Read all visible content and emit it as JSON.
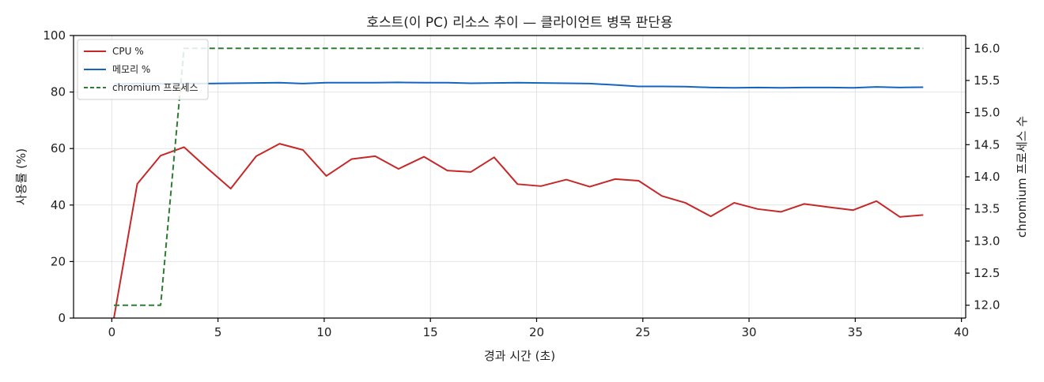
{
  "chart_data": {
    "type": "line",
    "title": "호스트(이 PC) 리소스 추이 — 클라이언트 병목 판단용",
    "xlabel": "경과 시간 (초)",
    "ylabel": "사용률 (%)",
    "y2label": "chromium 프로세스 수",
    "xlim": [
      -1.8,
      40.2
    ],
    "ylim": [
      0,
      100
    ],
    "y2lim": [
      11.8,
      16.2
    ],
    "xticks": [
      0,
      5,
      10,
      15,
      20,
      25,
      30,
      35,
      40
    ],
    "yticks": [
      0,
      20,
      40,
      60,
      80,
      100
    ],
    "y2ticks": [
      12.0,
      12.5,
      13.0,
      13.5,
      14.0,
      14.5,
      15.0,
      15.5,
      16.0
    ],
    "grid": true,
    "legend_position": "upper-left",
    "series": [
      {
        "name": "CPU %",
        "axis": "left",
        "color": "#c62828",
        "dash": "solid",
        "x": [
          0.1,
          1.2,
          2.3,
          3.4,
          4.5,
          5.6,
          6.8,
          7.9,
          9.0,
          10.1,
          11.3,
          12.4,
          13.5,
          14.7,
          15.8,
          16.9,
          18.0,
          19.1,
          20.2,
          21.4,
          22.5,
          23.7,
          24.8,
          25.9,
          27.0,
          28.2,
          29.3,
          30.4,
          31.5,
          32.6,
          33.8,
          34.9,
          36.0,
          37.1,
          38.2
        ],
        "y": [
          0,
          47.5,
          57.5,
          60.5,
          53,
          45.8,
          57.3,
          61.7,
          59.5,
          50.3,
          56.3,
          57.3,
          52.8,
          57.1,
          52.2,
          51.7,
          56.9,
          47.4,
          46.7,
          49.0,
          46.5,
          49.2,
          48.6,
          43.2,
          40.8,
          36.0,
          40.8,
          38.6,
          37.6,
          40.4,
          39.2,
          38.2,
          41.4,
          35.8,
          36.5
        ]
      },
      {
        "name": "메모리 %",
        "axis": "left",
        "color": "#1565c0",
        "dash": "solid",
        "x": [
          0.1,
          1.2,
          2.3,
          3.4,
          4.5,
          5.6,
          6.8,
          7.9,
          9.0,
          10.1,
          11.3,
          12.4,
          13.5,
          14.7,
          15.8,
          16.9,
          18.0,
          19.1,
          20.2,
          21.4,
          22.5,
          23.7,
          24.8,
          25.9,
          27.0,
          28.2,
          29.3,
          30.4,
          31.5,
          32.6,
          33.8,
          34.9,
          36.0,
          37.1,
          38.2
        ],
        "y": [
          82.8,
          83.0,
          82.9,
          83.0,
          83.0,
          83.1,
          83.2,
          83.3,
          83.0,
          83.3,
          83.3,
          83.3,
          83.4,
          83.3,
          83.3,
          83.1,
          83.2,
          83.3,
          83.2,
          83.1,
          83.0,
          82.5,
          82.0,
          82.0,
          81.9,
          81.6,
          81.5,
          81.6,
          81.5,
          81.6,
          81.6,
          81.5,
          81.8,
          81.6,
          81.7
        ]
      },
      {
        "name": "chromium 프로세스",
        "axis": "right",
        "color": "#2e7d32",
        "dash": "dashed",
        "x": [
          0.1,
          1.2,
          2.3,
          3.4,
          4.5,
          5.6,
          6.8,
          7.9,
          9.0,
          10.1,
          11.3,
          12.4,
          13.5,
          14.7,
          15.8,
          16.9,
          18.0,
          19.1,
          20.2,
          21.4,
          22.5,
          23.7,
          24.8,
          25.9,
          27.0,
          28.2,
          29.3,
          30.4,
          31.5,
          32.6,
          33.8,
          34.9,
          36.0,
          37.1,
          38.2
        ],
        "y": [
          12,
          12,
          12,
          16,
          16,
          16,
          16,
          16,
          16,
          16,
          16,
          16,
          16,
          16,
          16,
          16,
          16,
          16,
          16,
          16,
          16,
          16,
          16,
          16,
          16,
          16,
          16,
          16,
          16,
          16,
          16,
          16,
          16,
          16,
          16
        ]
      }
    ]
  }
}
